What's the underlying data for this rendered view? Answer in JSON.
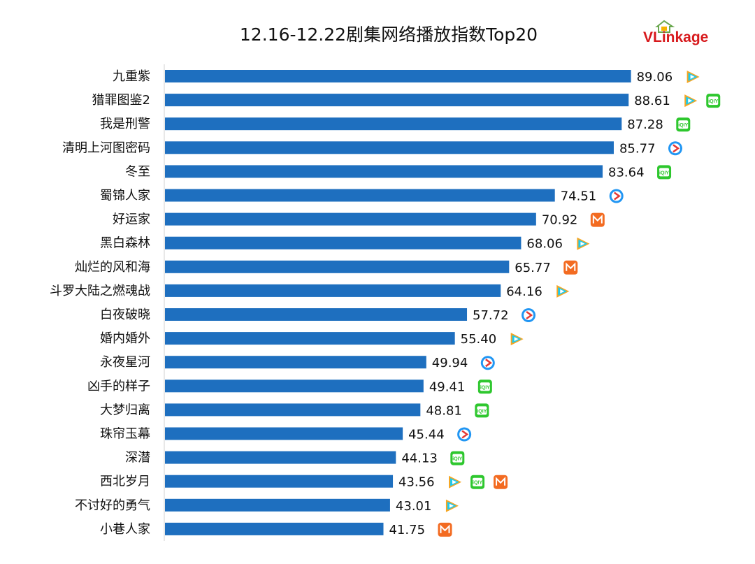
{
  "header": {
    "title": "12.16-12.22剧集网络播放指数Top20",
    "brand": "VLinkage"
  },
  "platforms": {
    "tencent": {
      "icon": "tencent-video-icon",
      "colors": [
        "#f5a623",
        "#1ec9ee",
        "#4caf50"
      ]
    },
    "iqiyi": {
      "icon": "iqiyi-icon",
      "color": "#2ec72e",
      "text": "iQIY"
    },
    "youku": {
      "icon": "youku-icon",
      "colors": [
        "#2196f3",
        "#e53935"
      ]
    },
    "mango": {
      "icon": "mango-tv-icon",
      "color": "#f36b21"
    }
  },
  "chart_data": {
    "type": "bar",
    "orientation": "horizontal",
    "title": "12.16-12.22剧集网络播放指数Top20",
    "bar_color": "#1e6fbf",
    "categories": [
      "九重紫",
      "猎罪图鉴2",
      "我是刑警",
      "清明上河图密码",
      "冬至",
      "蜀锦人家",
      "好运家",
      "黑白森林",
      "灿烂的风和海",
      "斗罗大陆之燃魂战",
      "白夜破晓",
      "婚内婚外",
      "永夜星河",
      "凶手的样子",
      "大梦归离",
      "珠帘玉幕",
      "深潜",
      "西北岁月",
      "不讨好的勇气",
      "小巷人家"
    ],
    "values": [
      89.06,
      88.61,
      87.28,
      85.77,
      83.64,
      74.51,
      70.92,
      68.06,
      65.77,
      64.16,
      57.72,
      55.4,
      49.94,
      49.41,
      48.81,
      45.44,
      44.13,
      43.56,
      43.01,
      41.75
    ],
    "value_labels": [
      "89.06",
      "88.61",
      "87.28",
      "85.77",
      "83.64",
      "74.51",
      "70.92",
      "68.06",
      "65.77",
      "64.16",
      "57.72",
      "55.40",
      "49.94",
      "49.41",
      "48.81",
      "45.44",
      "44.13",
      "43.56",
      "43.01",
      "41.75"
    ],
    "platforms": [
      [
        "tencent"
      ],
      [
        "tencent",
        "iqiyi"
      ],
      [
        "iqiyi"
      ],
      [
        "youku"
      ],
      [
        "iqiyi"
      ],
      [
        "youku"
      ],
      [
        "mango"
      ],
      [
        "tencent"
      ],
      [
        "mango"
      ],
      [
        "tencent"
      ],
      [
        "youku"
      ],
      [
        "tencent"
      ],
      [
        "youku"
      ],
      [
        "iqiyi"
      ],
      [
        "iqiyi"
      ],
      [
        "youku"
      ],
      [
        "iqiyi"
      ],
      [
        "tencent",
        "iqiyi",
        "mango"
      ],
      [
        "tencent"
      ],
      [
        "mango"
      ]
    ],
    "xlim": [
      0,
      100
    ],
    "grid": false,
    "legend": "none"
  }
}
